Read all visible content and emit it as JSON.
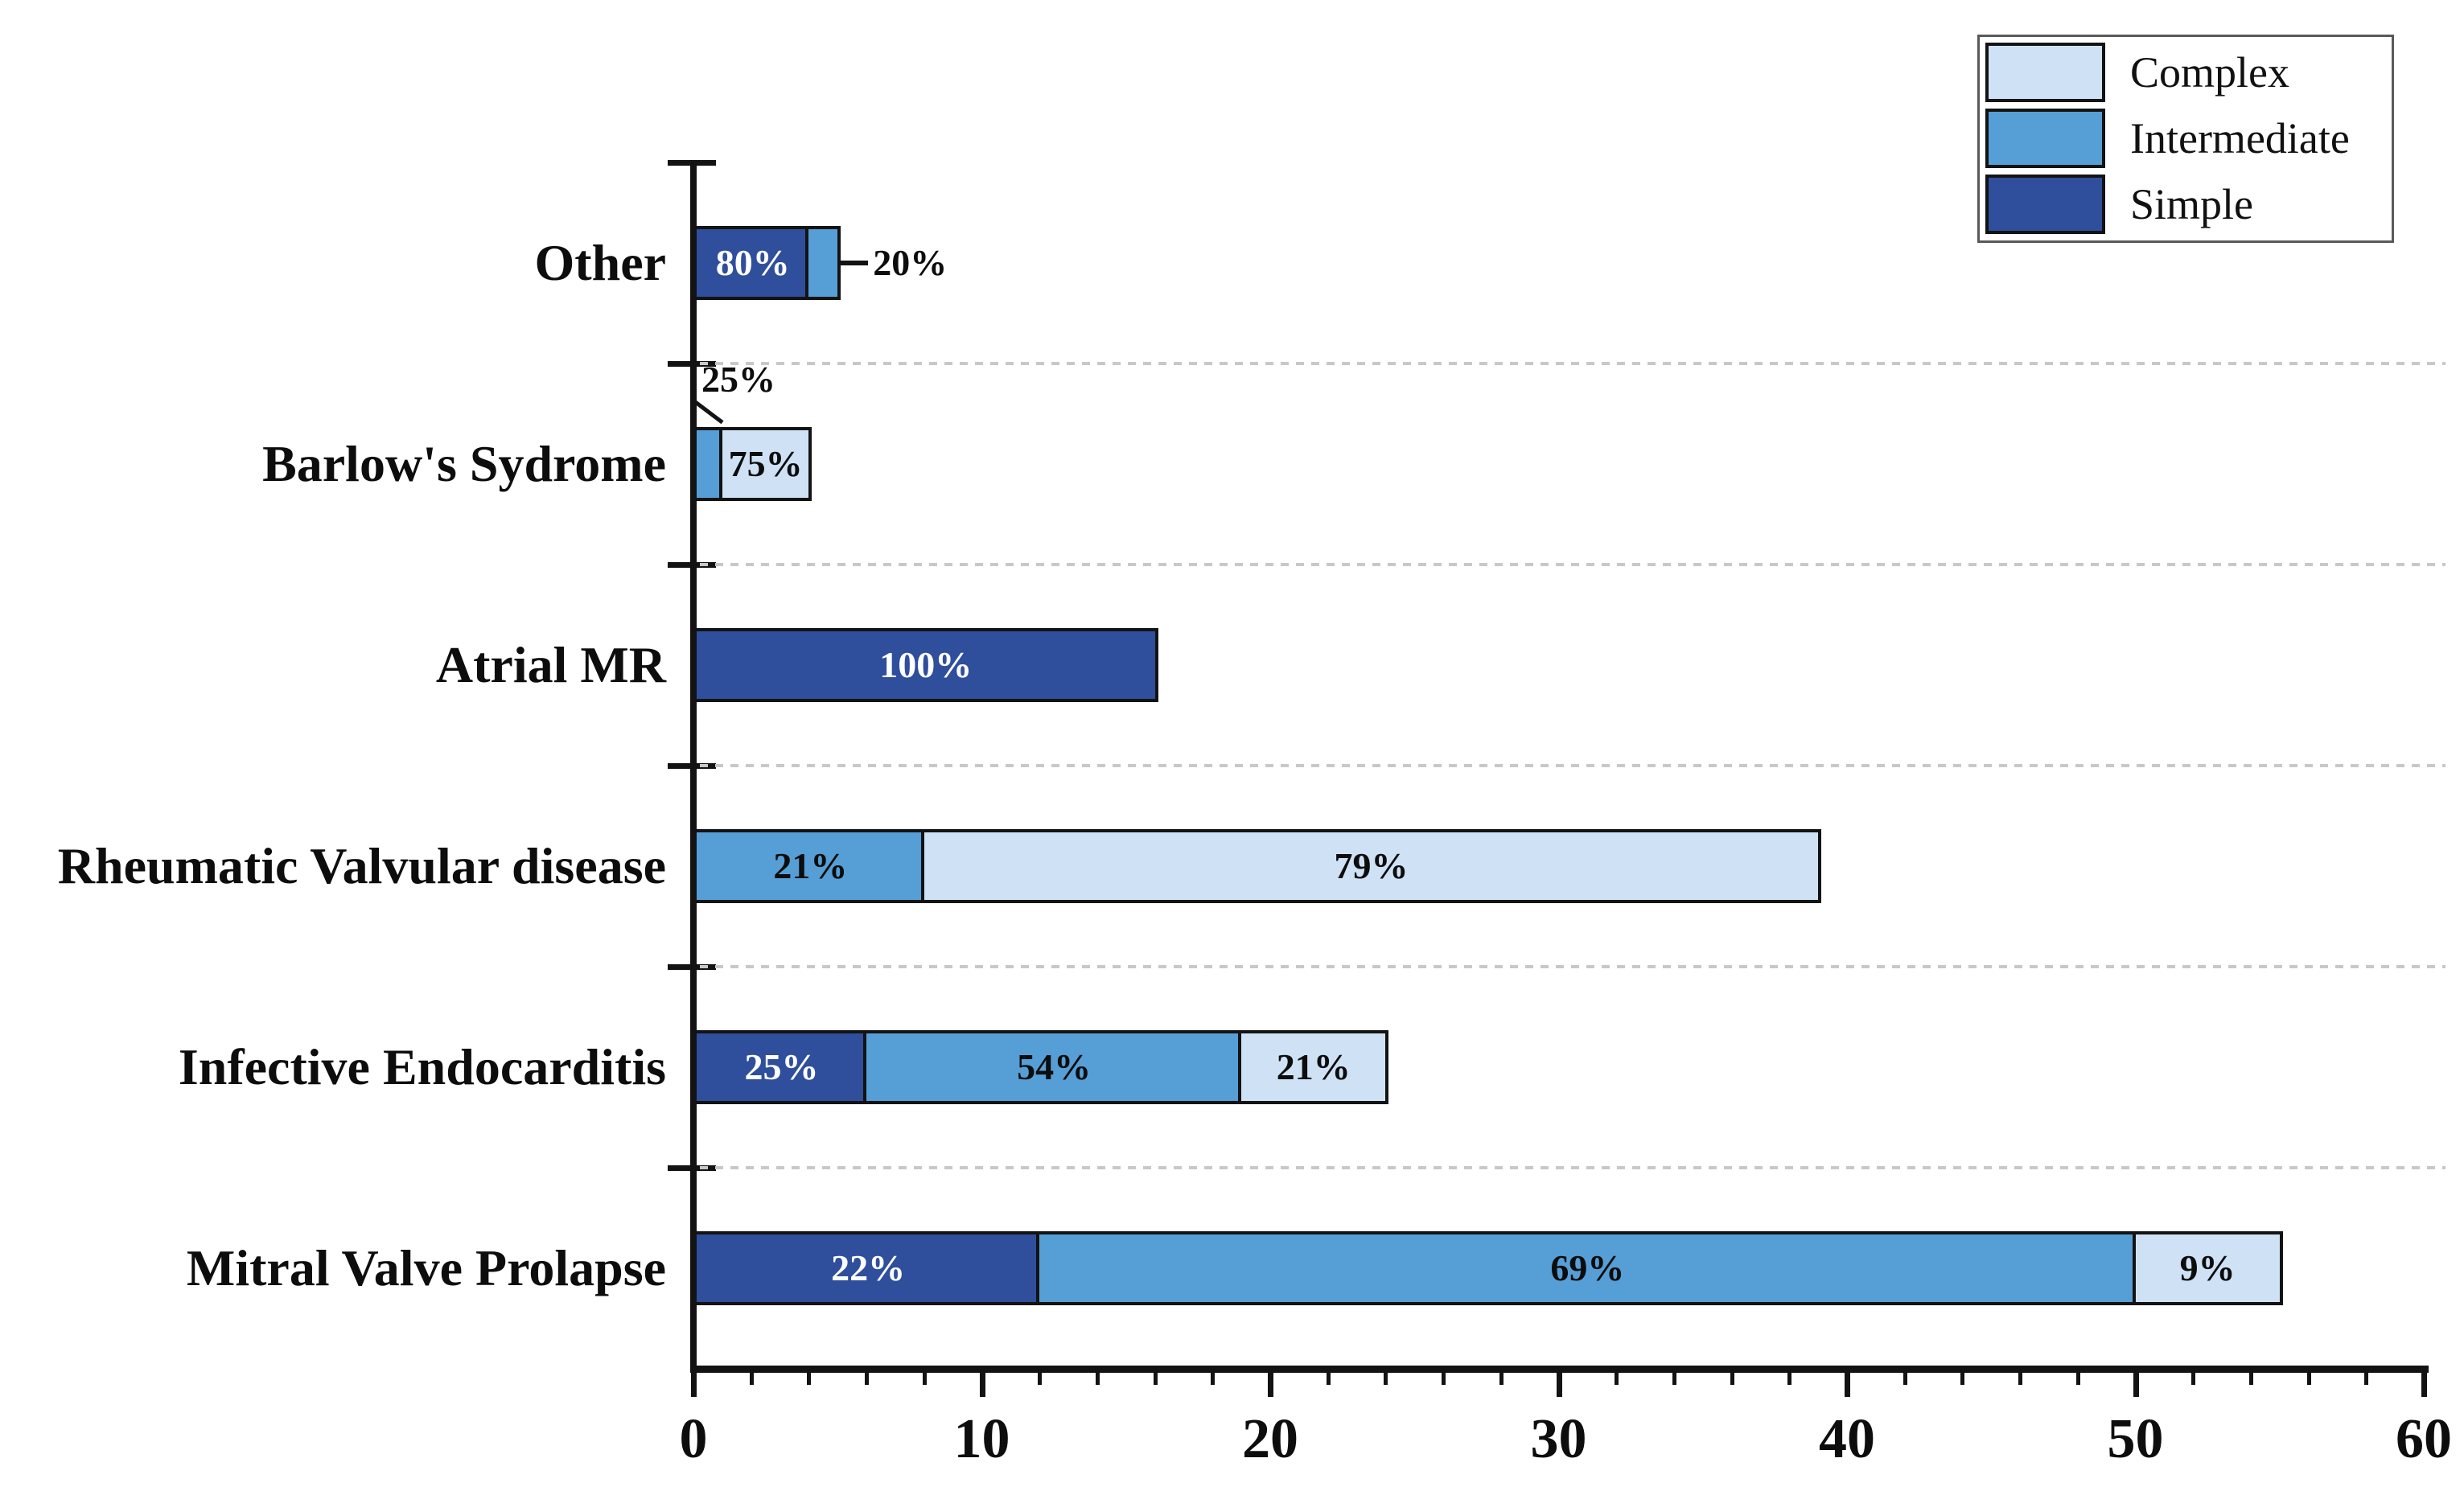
{
  "chart_data": {
    "type": "bar",
    "orientation": "horizontal-stacked",
    "title": "",
    "xlabel": "",
    "ylabel": "",
    "xlim": [
      0,
      60
    ],
    "xticks": [
      0,
      10,
      20,
      30,
      40,
      50,
      60
    ],
    "minor_tick_step": 2,
    "grid": "dotted horizontal lines between category bands",
    "legend_position": "top-right",
    "categories": [
      "Other",
      "Barlow's Sydrome",
      "Atrial MR",
      "Rheumatic Valvular disease",
      "Infective Endocarditis",
      "Mitral Valve Prolapse"
    ],
    "series": [
      {
        "name": "Simple",
        "color": "#2f4e9c",
        "values": [
          4,
          0,
          16,
          0,
          6,
          12
        ]
      },
      {
        "name": "Intermediate",
        "color": "#569ed6",
        "values": [
          1,
          1,
          0,
          8,
          13,
          38
        ]
      },
      {
        "name": "Complex",
        "color": "#cfe2f5",
        "values": [
          0,
          3,
          0,
          31,
          5,
          5
        ]
      }
    ],
    "totals": [
      5,
      4,
      16,
      39,
      24,
      55
    ],
    "segment_labels": [
      [
        {
          "series": "Simple",
          "text": "80%",
          "placement": "inside",
          "text_color": "#ffffff"
        },
        {
          "series": "Intermediate",
          "text": "20%",
          "placement": "outside-right",
          "text_color": "#0d0d0d"
        }
      ],
      [
        {
          "series": "Intermediate",
          "text": "25%",
          "placement": "outside-above",
          "text_color": "#0d0d0d"
        },
        {
          "series": "Complex",
          "text": "75%",
          "placement": "inside",
          "text_color": "#0d0d0d"
        }
      ],
      [
        {
          "series": "Simple",
          "text": "100%",
          "placement": "inside",
          "text_color": "#ffffff"
        }
      ],
      [
        {
          "series": "Intermediate",
          "text": "21%",
          "placement": "inside",
          "text_color": "#0d0d0d"
        },
        {
          "series": "Complex",
          "text": "79%",
          "placement": "inside",
          "text_color": "#0d0d0d"
        }
      ],
      [
        {
          "series": "Simple",
          "text": "25%",
          "placement": "inside",
          "text_color": "#ffffff"
        },
        {
          "series": "Intermediate",
          "text": "54%",
          "placement": "inside",
          "text_color": "#0d0d0d"
        },
        {
          "series": "Complex",
          "text": "21%",
          "placement": "inside",
          "text_color": "#0d0d0d"
        }
      ],
      [
        {
          "series": "Simple",
          "text": "22%",
          "placement": "inside",
          "text_color": "#ffffff"
        },
        {
          "series": "Intermediate",
          "text": "69%",
          "placement": "inside",
          "text_color": "#0d0d0d"
        },
        {
          "series": "Complex",
          "text": "9%",
          "placement": "inside",
          "text_color": "#0d0d0d"
        }
      ]
    ],
    "legend": {
      "items": [
        {
          "label": "Complex",
          "color": "#cfe2f5"
        },
        {
          "label": "Intermediate",
          "color": "#569ed6"
        },
        {
          "label": "Simple",
          "color": "#2f4e9c"
        }
      ]
    },
    "colors": {
      "axis": "#131313",
      "grid": "#c8c8c8",
      "bar_border": "#131313",
      "background": "#ffffff"
    }
  }
}
